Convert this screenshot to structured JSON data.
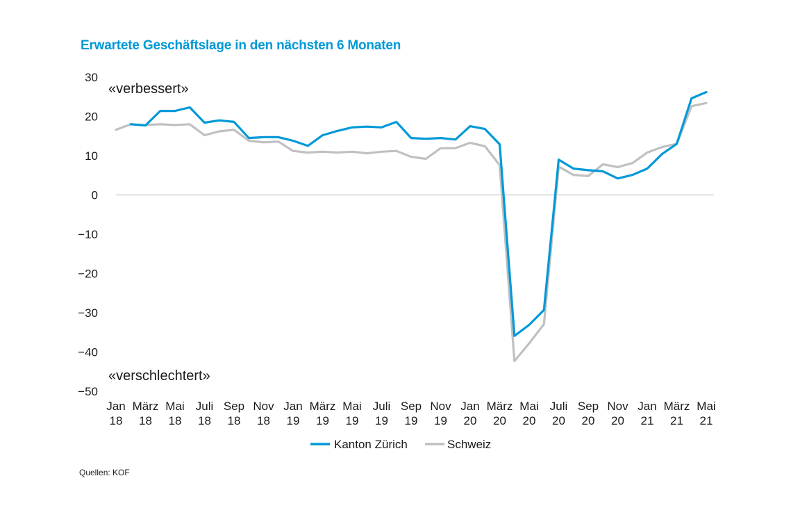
{
  "chart_data": {
    "type": "line",
    "title": "Erwartete Geschäftslage in den nächsten 6 Monaten",
    "ylim": [
      -50,
      30
    ],
    "y_ticks": [
      30,
      20,
      10,
      0,
      -10,
      -20,
      -30,
      -40,
      -50
    ],
    "y_tick_labels": [
      "30",
      "20",
      "10",
      "0",
      "−10",
      "−20",
      "−30",
      "−40",
      "−50"
    ],
    "x_tick_labels": [
      [
        "Jan",
        "18"
      ],
      [
        "März",
        "18"
      ],
      [
        "Mai",
        "18"
      ],
      [
        "Juli",
        "18"
      ],
      [
        "Sep",
        "18"
      ],
      [
        "Nov",
        "18"
      ],
      [
        "Jan",
        "19"
      ],
      [
        "März",
        "19"
      ],
      [
        "Mai",
        "19"
      ],
      [
        "Juli",
        "19"
      ],
      [
        "Sep",
        "19"
      ],
      [
        "Nov",
        "19"
      ],
      [
        "Jan",
        "20"
      ],
      [
        "März",
        "20"
      ],
      [
        "Mai",
        "20"
      ],
      [
        "Juli",
        "20"
      ],
      [
        "Sep",
        "20"
      ],
      [
        "Nov",
        "20"
      ],
      [
        "Jan",
        "21"
      ],
      [
        "März",
        "21"
      ],
      [
        "Mai",
        "21"
      ]
    ],
    "x": [
      "2018-01",
      "2018-02",
      "2018-03",
      "2018-04",
      "2018-05",
      "2018-06",
      "2018-07",
      "2018-08",
      "2018-09",
      "2018-10",
      "2018-11",
      "2018-12",
      "2019-01",
      "2019-02",
      "2019-03",
      "2019-04",
      "2019-05",
      "2019-06",
      "2019-07",
      "2019-08",
      "2019-09",
      "2019-10",
      "2019-11",
      "2019-12",
      "2020-01",
      "2020-02",
      "2020-03",
      "2020-04",
      "2020-05",
      "2020-06",
      "2020-07",
      "2020-08",
      "2020-09",
      "2020-10",
      "2020-11",
      "2020-12",
      "2021-01",
      "2021-02",
      "2021-03",
      "2021-04",
      "2021-05"
    ],
    "annotations": {
      "upper": "«verbessert»",
      "lower": "«verschlechtert»"
    },
    "series": [
      {
        "name": "Kanton Zürich",
        "color": "#0099d8",
        "values": [
          null,
          18.0,
          17.7,
          21.4,
          21.4,
          22.3,
          18.4,
          19.0,
          18.6,
          14.5,
          14.7,
          14.7,
          13.8,
          12.5,
          15.2,
          16.3,
          17.2,
          17.4,
          17.2,
          18.6,
          14.5,
          14.3,
          14.5,
          14.1,
          17.5,
          16.8,
          12.9,
          -35.9,
          -33.1,
          -29.3,
          9.0,
          6.7,
          6.3,
          6.0,
          4.2,
          5.1,
          6.7,
          10.4,
          13.0,
          24.6,
          26.2
        ]
      },
      {
        "name": "Schweiz",
        "color": "#c0c0c0",
        "values": [
          16.6,
          18.0,
          17.8,
          18.0,
          17.8,
          18.0,
          15.2,
          16.2,
          16.6,
          13.8,
          13.4,
          13.6,
          11.2,
          10.8,
          11.0,
          10.8,
          11.0,
          10.6,
          11.0,
          11.2,
          9.7,
          9.2,
          11.9,
          11.9,
          13.3,
          12.4,
          7.6,
          -42.3,
          -37.8,
          -32.9,
          7.2,
          5.1,
          4.8,
          7.8,
          7.1,
          8.1,
          10.8,
          12.2,
          13.0,
          22.6,
          23.4
        ]
      }
    ],
    "legend_position": "bottom-center",
    "grid": false
  },
  "source": "Quellen: KOF"
}
